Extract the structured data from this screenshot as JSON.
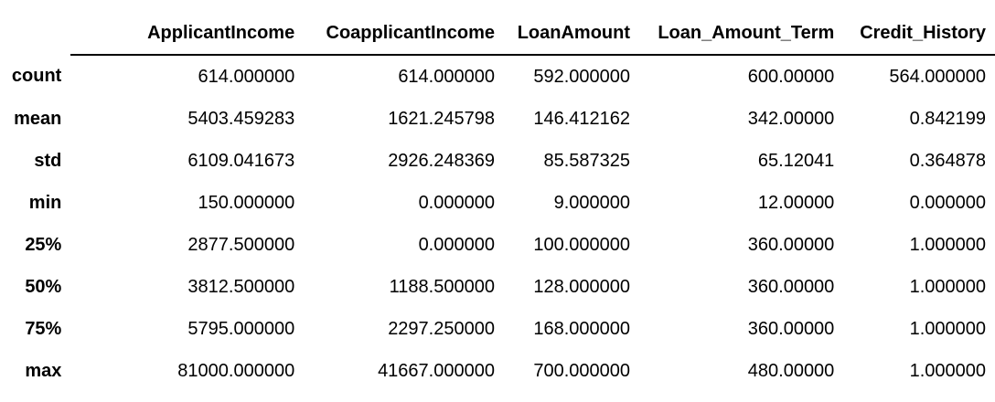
{
  "table": {
    "columns": [
      "ApplicantIncome",
      "CoapplicantIncome",
      "LoanAmount",
      "Loan_Amount_Term",
      "Credit_History"
    ],
    "rows": [
      {
        "label": "count",
        "values": [
          "614.000000",
          "614.000000",
          "592.000000",
          "600.00000",
          "564.000000"
        ]
      },
      {
        "label": "mean",
        "values": [
          "5403.459283",
          "1621.245798",
          "146.412162",
          "342.00000",
          "0.842199"
        ]
      },
      {
        "label": "std",
        "values": [
          "6109.041673",
          "2926.248369",
          "85.587325",
          "65.12041",
          "0.364878"
        ]
      },
      {
        "label": "min",
        "values": [
          "150.000000",
          "0.000000",
          "9.000000",
          "12.00000",
          "0.000000"
        ]
      },
      {
        "label": "25%",
        "values": [
          "2877.500000",
          "0.000000",
          "100.000000",
          "360.00000",
          "1.000000"
        ]
      },
      {
        "label": "50%",
        "values": [
          "3812.500000",
          "1188.500000",
          "128.000000",
          "360.00000",
          "1.000000"
        ]
      },
      {
        "label": "75%",
        "values": [
          "5795.000000",
          "2297.250000",
          "168.000000",
          "360.00000",
          "1.000000"
        ]
      },
      {
        "label": "max",
        "values": [
          "81000.000000",
          "41667.000000",
          "700.000000",
          "480.00000",
          "1.000000"
        ]
      }
    ]
  }
}
